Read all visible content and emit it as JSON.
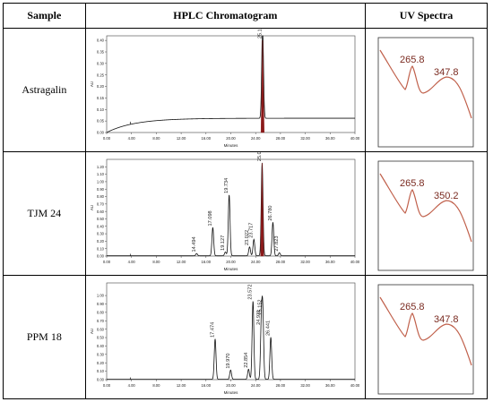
{
  "headers": {
    "sample": "Sample",
    "chromatogram": "HPLC Chromatogram",
    "uv": "UV Spectra"
  },
  "rows": [
    {
      "sample": "Astragalin",
      "uv_labels": [
        "265.8",
        "347.8"
      ]
    },
    {
      "sample": "TJM 24",
      "uv_labels": [
        "265.8",
        "350.2"
      ]
    },
    {
      "sample": "PPM 18",
      "uv_labels": [
        "265.8",
        "347.8"
      ]
    }
  ],
  "colors": {
    "trace": "#111111",
    "main_peak": "#8b1a1a",
    "uv_curve": "#c0604b",
    "uv_label": "#7a2a20"
  },
  "chart_data": [
    {
      "type": "line",
      "ylabel": "AU",
      "xlabel": "Minutes",
      "xlim": [
        0,
        40
      ],
      "ylim": [
        0,
        0.42
      ],
      "xticks": [
        "0.00",
        "4.00",
        "8.00",
        "12.00",
        "16.00",
        "20.00",
        "24.00",
        "28.00",
        "32.00",
        "36.00",
        "40.00"
      ],
      "yticks": [
        "0.00",
        "0.05",
        "0.10",
        "0.15",
        "0.20",
        "0.25",
        "0.30",
        "0.35",
        "0.40"
      ],
      "baseline": "rising",
      "peaks": [
        {
          "rt": 25.12,
          "height": 0.4,
          "label": "25.120",
          "main": true
        }
      ]
    },
    {
      "type": "line",
      "ylabel": "AU",
      "xlabel": "Minutes",
      "xlim": [
        0,
        40
      ],
      "ylim": [
        0,
        1.3
      ],
      "xticks": [
        "0.00",
        "4.00",
        "8.00",
        "12.00",
        "16.00",
        "20.00",
        "24.00",
        "28.00",
        "32.00",
        "36.00",
        "40.00"
      ],
      "yticks": [
        "0.00",
        "0.10",
        "0.20",
        "0.30",
        "0.40",
        "0.50",
        "0.60",
        "0.70",
        "0.80",
        "0.90",
        "1.00",
        "1.10",
        "1.20"
      ],
      "baseline": "flat",
      "peaks": [
        {
          "rt": 14.494,
          "height": 0.03,
          "label": "14.494"
        },
        {
          "rt": 17.098,
          "height": 0.38,
          "label": "17.098"
        },
        {
          "rt": 19.127,
          "height": 0.05,
          "label": "19.127"
        },
        {
          "rt": 19.734,
          "height": 0.82,
          "label": "19.734"
        },
        {
          "rt": 23.022,
          "height": 0.12,
          "label": "23.022"
        },
        {
          "rt": 23.717,
          "height": 0.22,
          "label": "23.717"
        },
        {
          "rt": 25.045,
          "height": 1.25,
          "label": "25.045",
          "main": true
        },
        {
          "rt": 26.78,
          "height": 0.45,
          "label": "26.780"
        },
        {
          "rt": 27.823,
          "height": 0.04,
          "label": "27.823"
        }
      ]
    },
    {
      "type": "line",
      "ylabel": "AU",
      "xlabel": "Minutes",
      "xlim": [
        0,
        40
      ],
      "ylim": [
        0,
        1.15
      ],
      "xticks": [
        "0.00",
        "4.00",
        "8.00",
        "12.00",
        "16.00",
        "20.00",
        "24.00",
        "28.00",
        "32.00",
        "36.00",
        "40.00"
      ],
      "yticks": [
        "0.00",
        "0.10",
        "0.20",
        "0.30",
        "0.40",
        "0.50",
        "0.60",
        "0.70",
        "0.80",
        "0.90",
        "1.00"
      ],
      "baseline": "flat",
      "peaks": [
        {
          "rt": 17.474,
          "height": 0.48,
          "label": "17.474"
        },
        {
          "rt": 19.97,
          "height": 0.11,
          "label": "19.970"
        },
        {
          "rt": 22.854,
          "height": 0.12,
          "label": "22.854"
        },
        {
          "rt": 23.572,
          "height": 0.93,
          "label": "23.572"
        },
        {
          "rt": 24.921,
          "height": 0.63,
          "label": "24.921"
        },
        {
          "rt": 25.152,
          "height": 0.75,
          "label": "25.152"
        },
        {
          "rt": 26.441,
          "height": 0.5,
          "label": "26.441"
        }
      ]
    }
  ]
}
